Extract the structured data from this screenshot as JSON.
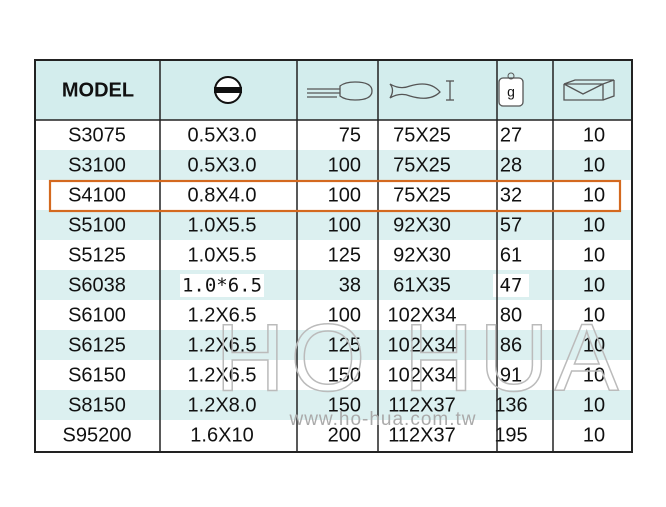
{
  "table": {
    "header": "MODEL",
    "weight_unit": "g",
    "rows": [
      [
        "S3075",
        "0.5X3.0",
        "75",
        "75X25",
        "27",
        "10"
      ],
      [
        "S3100",
        "0.5X3.0",
        "100",
        "75X25",
        "28",
        "10"
      ],
      [
        "S4100",
        "0.8X4.0",
        "100",
        "75X25",
        "32",
        "10"
      ],
      [
        "S5100",
        "1.0X5.5",
        "100",
        "92X30",
        "57",
        "10"
      ],
      [
        "S5125",
        "1.0X5.5",
        "125",
        "92X30",
        "61",
        "10"
      ],
      [
        "S6038",
        "1.0*6.5",
        "38",
        "61X35",
        "47",
        "10"
      ],
      [
        "S6100",
        "1.2X6.5",
        "100",
        "102X34",
        "80",
        "10"
      ],
      [
        "S6125",
        "1.2X6.5",
        "125",
        "102X34",
        "86",
        "10"
      ],
      [
        "S6150",
        "1.2X6.5",
        "150",
        "102X34",
        "91",
        "10"
      ],
      [
        "S8150",
        "1.2X8.0",
        "150",
        "112X37",
        "136",
        "10"
      ],
      [
        "S95200",
        "1.6X10",
        "200",
        "112X37",
        "195",
        "10"
      ]
    ]
  },
  "watermark": {
    "brand": "HO HUA",
    "url": "www.ho-hua.com.tw"
  }
}
